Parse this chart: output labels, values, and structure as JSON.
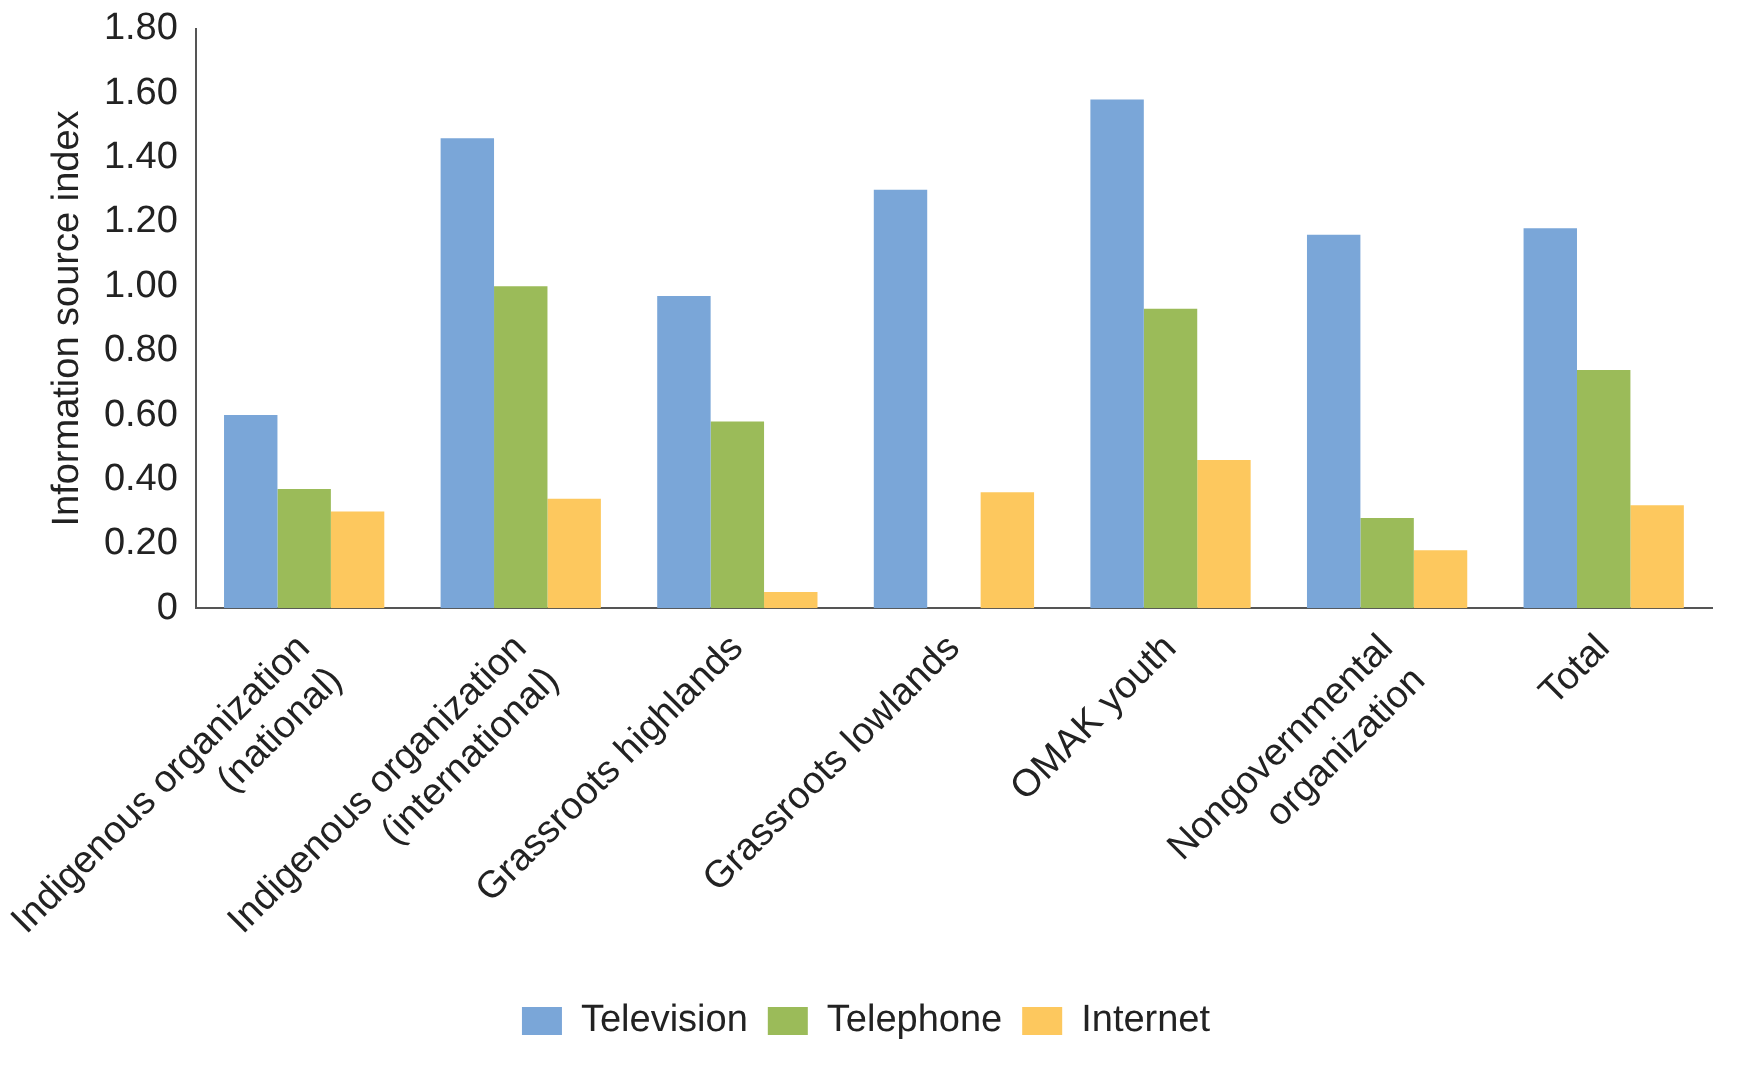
{
  "chart_data": {
    "type": "bar",
    "ylabel": "Information source index",
    "categories": [
      "Indigenous organization\n(national)",
      "Indigenous organization\n(international)",
      "Grassroots highlands",
      "Grassroots lowlands",
      "OMAK youth",
      "Nongovernmental\norganization",
      "Total"
    ],
    "series": [
      {
        "name": "Television",
        "color": "#7aa6d8",
        "values": [
          0.6,
          1.46,
          0.97,
          1.3,
          1.58,
          1.16,
          1.18
        ]
      },
      {
        "name": "Telephone",
        "color": "#9bbb59",
        "values": [
          0.37,
          1.0,
          0.58,
          0,
          0.93,
          0.28,
          0.74
        ]
      },
      {
        "name": "Internet",
        "color": "#fdc85e",
        "values": [
          0.3,
          0.34,
          0.05,
          0.36,
          0.46,
          0.18,
          0.32
        ]
      }
    ],
    "ylim": [
      0,
      1.8
    ],
    "yticks": [
      0,
      {
        "value": 0.2,
        "label": "0.20"
      },
      {
        "value": 0.4,
        "label": "0.40"
      },
      {
        "value": 0.6,
        "label": "0.60"
      },
      {
        "value": 0.8,
        "label": "0.80"
      },
      {
        "value": 1,
        "label": "1.00"
      },
      {
        "value": 1.2,
        "label": "1.20"
      },
      {
        "value": 1.4,
        "label": "1.40"
      },
      {
        "value": 1.6,
        "label": "1.60"
      },
      {
        "value": 1.8,
        "label": "1.80"
      }
    ],
    "grid": false,
    "legend": "bottom"
  }
}
